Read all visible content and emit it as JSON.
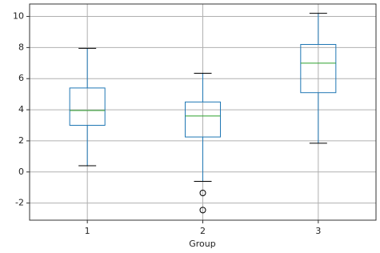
{
  "chart_data": {
    "type": "box",
    "xlabel": "Group",
    "categories": [
      "1",
      "2",
      "3"
    ],
    "boxes": [
      {
        "whislo": 0.4,
        "q1": 3.0,
        "med": 3.95,
        "q3": 5.4,
        "whishi": 7.95,
        "fliers": []
      },
      {
        "whislo": -0.6,
        "q1": 2.25,
        "med": 3.6,
        "q3": 4.5,
        "whishi": 6.35,
        "fliers": [
          -1.35,
          -2.45
        ]
      },
      {
        "whislo": 1.85,
        "q1": 5.1,
        "med": 7.0,
        "q3": 8.2,
        "whishi": 10.2,
        "fliers": []
      }
    ],
    "box_color": "#1f77b4",
    "median_color": "#2ca02c",
    "cap_color": "#000000",
    "ylim": [
      -3.1,
      10.8
    ],
    "yticks": [
      -2,
      0,
      2,
      4,
      6,
      8,
      10
    ],
    "grid": true
  }
}
